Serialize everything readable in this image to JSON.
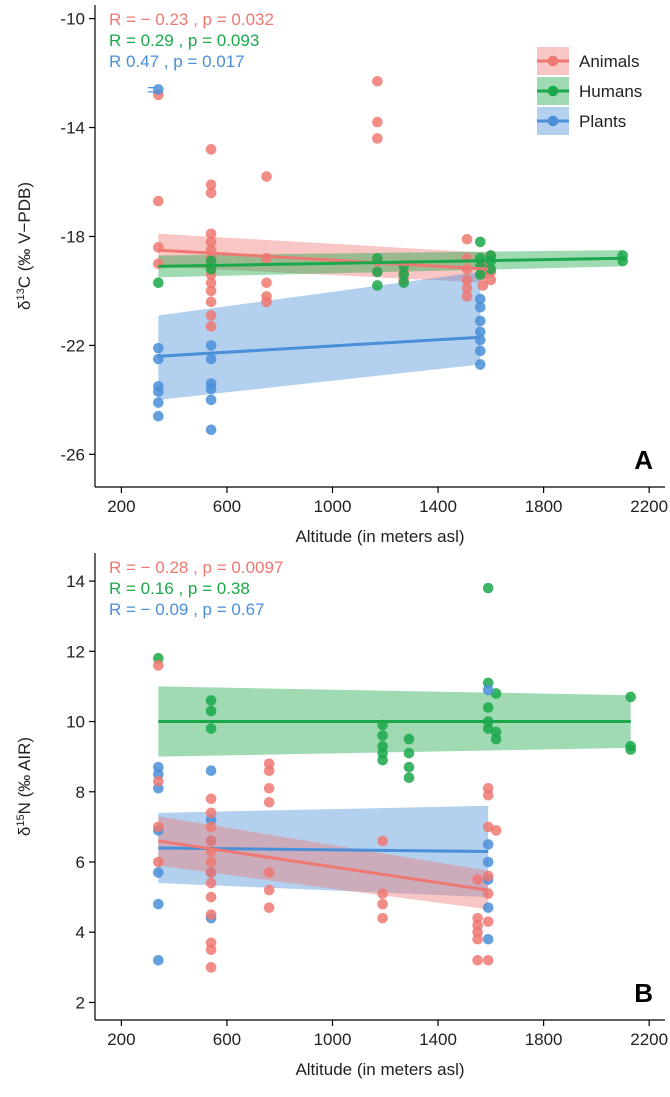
{
  "chart_data": [
    {
      "type": "scatter",
      "panel_label": "A",
      "xlabel": "Altitude (in meters asl)",
      "ylabel_prefix": "δ",
      "ylabel_sup": "13",
      "ylabel_suffix": "C (‰ V−PDB)",
      "xlim": [
        100,
        2260
      ],
      "ylim": [
        -27.2,
        -9.5
      ],
      "xticks": [
        200,
        600,
        1000,
        1400,
        1800,
        2200
      ],
      "yticks": [
        -26,
        -22,
        -18,
        -14,
        -10
      ],
      "ytick_labels": [
        "-26",
        "-22",
        "-18",
        "-14",
        "-10"
      ],
      "legend": {
        "placement": "top-right",
        "entries": [
          {
            "name": "Animals",
            "color": "#ee7872"
          },
          {
            "name": "Humans",
            "color": "#1aa84a"
          },
          {
            "name": "Plants",
            "color": "#4a8fd8"
          }
        ]
      },
      "stats": [
        {
          "text": "R = − 0.23 , p = 0.032",
          "color": "#ee7872"
        },
        {
          "text": "R = 0.29 , p = 0.093",
          "color": "#1aa84a"
        },
        {
          "text": "R    0.47 , p = 0.017",
          "color": "#4a8fd8"
        }
      ],
      "stray_label": {
        "text": "=",
        "x": 297,
        "y": -12.6,
        "color": "#4a8fd8"
      },
      "series": [
        {
          "name": "Animals",
          "color": "#ee7872",
          "fit": {
            "x": [
              340,
              1590
            ],
            "y": [
              -18.5,
              -19.2
            ]
          },
          "band_lower": [
            -19.1,
            -19.7
          ],
          "band_upper": [
            -17.9,
            -18.6
          ],
          "points": [
            [
              340,
              -12.8
            ],
            [
              340,
              -16.7
            ],
            [
              340,
              -18.4
            ],
            [
              340,
              -19.0
            ],
            [
              540,
              -14.8
            ],
            [
              540,
              -16.1
            ],
            [
              540,
              -16.4
            ],
            [
              540,
              -17.9
            ],
            [
              540,
              -18.2
            ],
            [
              540,
              -18.5
            ],
            [
              540,
              -18.8
            ],
            [
              540,
              -19.1
            ],
            [
              540,
              -19.4
            ],
            [
              540,
              -19.7
            ],
            [
              540,
              -20.0
            ],
            [
              540,
              -20.4
            ],
            [
              540,
              -20.9
            ],
            [
              540,
              -21.3
            ],
            [
              750,
              -15.8
            ],
            [
              750,
              -18.8
            ],
            [
              750,
              -19.7
            ],
            [
              750,
              -20.2
            ],
            [
              750,
              -20.4
            ],
            [
              1170,
              -12.3
            ],
            [
              1170,
              -13.8
            ],
            [
              1170,
              -14.4
            ],
            [
              1170,
              -18.9
            ],
            [
              1170,
              -19.3
            ],
            [
              1270,
              -19.3
            ],
            [
              1270,
              -19.6
            ],
            [
              1510,
              -18.1
            ],
            [
              1510,
              -18.8
            ],
            [
              1510,
              -19.2
            ],
            [
              1510,
              -19.6
            ],
            [
              1510,
              -19.9
            ],
            [
              1510,
              -20.2
            ],
            [
              1570,
              -19.0
            ],
            [
              1570,
              -19.4
            ],
            [
              1570,
              -19.8
            ],
            [
              1600,
              -18.7
            ],
            [
              1600,
              -19.3
            ],
            [
              1600,
              -19.6
            ]
          ]
        },
        {
          "name": "Humans",
          "color": "#1aa84a",
          "fit": {
            "x": [
              340,
              2100
            ],
            "y": [
              -19.1,
              -18.8
            ]
          },
          "band_lower": [
            -19.5,
            -19.1
          ],
          "band_upper": [
            -18.7,
            -18.5
          ],
          "points": [
            [
              340,
              -19.7
            ],
            [
              540,
              -18.9
            ],
            [
              540,
              -19.2
            ],
            [
              1170,
              -18.8
            ],
            [
              1170,
              -19.3
            ],
            [
              1170,
              -19.8
            ],
            [
              1270,
              -19.1
            ],
            [
              1270,
              -19.4
            ],
            [
              1270,
              -19.7
            ],
            [
              1560,
              -18.2
            ],
            [
              1560,
              -18.8
            ],
            [
              1560,
              -19.1
            ],
            [
              1560,
              -19.4
            ],
            [
              1600,
              -18.7
            ],
            [
              1600,
              -18.9
            ],
            [
              1600,
              -19.2
            ],
            [
              2100,
              -18.7
            ],
            [
              2100,
              -18.9
            ]
          ]
        },
        {
          "name": "Plants",
          "color": "#4a8fd8",
          "fit": {
            "x": [
              340,
              1560
            ],
            "y": [
              -22.4,
              -21.7
            ]
          },
          "band_lower": [
            -24.0,
            -22.7
          ],
          "band_upper": [
            -20.9,
            -19.3
          ],
          "points": [
            [
              340,
              -12.6
            ],
            [
              340,
              -22.1
            ],
            [
              340,
              -22.5
            ],
            [
              340,
              -23.5
            ],
            [
              340,
              -23.7
            ],
            [
              340,
              -24.1
            ],
            [
              340,
              -24.6
            ],
            [
              540,
              -22.0
            ],
            [
              540,
              -22.5
            ],
            [
              540,
              -23.4
            ],
            [
              540,
              -23.6
            ],
            [
              540,
              -24.0
            ],
            [
              540,
              -25.1
            ],
            [
              1560,
              -20.3
            ],
            [
              1560,
              -20.6
            ],
            [
              1560,
              -21.1
            ],
            [
              1560,
              -21.5
            ],
            [
              1560,
              -21.8
            ],
            [
              1560,
              -22.2
            ],
            [
              1560,
              -22.7
            ]
          ]
        }
      ]
    },
    {
      "type": "scatter",
      "panel_label": "B",
      "xlabel": "Altitude (in meters asl)",
      "ylabel_prefix": "δ",
      "ylabel_sup": "15",
      "ylabel_suffix": "N (‰ AIR)",
      "xlim": [
        100,
        2260
      ],
      "ylim": [
        1.5,
        14.8
      ],
      "xticks": [
        200,
        600,
        1000,
        1400,
        1800,
        2200
      ],
      "yticks": [
        2,
        4,
        6,
        8,
        10,
        12,
        14
      ],
      "ytick_labels": [
        "2",
        "4",
        "6",
        "8",
        "10",
        "12",
        "14"
      ],
      "stats": [
        {
          "text": "R = − 0.28 , p = 0.0097",
          "color": "#ee7872"
        },
        {
          "text": "R = 0.16 , p = 0.38",
          "color": "#1aa84a"
        },
        {
          "text": "R = − 0.09 , p = 0.67",
          "color": "#4a8fd8"
        }
      ],
      "series": [
        {
          "name": "Humans",
          "color": "#1aa84a",
          "fit": {
            "x": [
              340,
              2130
            ],
            "y": [
              10.0,
              10.0
            ]
          },
          "band_lower": [
            9.0,
            9.25
          ],
          "band_upper": [
            11.0,
            10.75
          ],
          "points": [
            [
              340,
              11.8
            ],
            [
              540,
              10.6
            ],
            [
              540,
              10.3
            ],
            [
              540,
              9.8
            ],
            [
              1190,
              9.9
            ],
            [
              1190,
              9.6
            ],
            [
              1190,
              9.3
            ],
            [
              1190,
              9.1
            ],
            [
              1190,
              8.9
            ],
            [
              1290,
              9.5
            ],
            [
              1290,
              9.1
            ],
            [
              1290,
              8.7
            ],
            [
              1290,
              8.4
            ],
            [
              1590,
              13.8
            ],
            [
              1590,
              11.1
            ],
            [
              1590,
              10.4
            ],
            [
              1590,
              10.0
            ],
            [
              1590,
              9.8
            ],
            [
              1620,
              10.8
            ],
            [
              1620,
              9.7
            ],
            [
              1620,
              9.5
            ],
            [
              2130,
              10.7
            ],
            [
              2130,
              9.3
            ],
            [
              2130,
              9.2
            ]
          ]
        },
        {
          "name": "Plants",
          "color": "#4a8fd8",
          "fit": {
            "x": [
              340,
              1590
            ],
            "y": [
              6.4,
              6.3
            ]
          },
          "band_lower": [
            5.4,
            5.0
          ],
          "band_upper": [
            7.4,
            7.6
          ],
          "points": [
            [
              340,
              8.7
            ],
            [
              340,
              8.5
            ],
            [
              340,
              8.1
            ],
            [
              340,
              6.9
            ],
            [
              340,
              5.7
            ],
            [
              340,
              4.8
            ],
            [
              340,
              3.2
            ],
            [
              540,
              8.6
            ],
            [
              540,
              7.2
            ],
            [
              540,
              6.6
            ],
            [
              540,
              5.7
            ],
            [
              540,
              4.4
            ],
            [
              1590,
              10.9
            ],
            [
              1590,
              6.5
            ],
            [
              1590,
              6.0
            ],
            [
              1590,
              5.5
            ],
            [
              1590,
              4.7
            ],
            [
              1590,
              3.8
            ]
          ]
        },
        {
          "name": "Animals",
          "color": "#ee7872",
          "fit": {
            "x": [
              340,
              1590
            ],
            "y": [
              6.6,
              5.2
            ]
          },
          "band_lower": [
            5.9,
            4.65
          ],
          "band_upper": [
            7.3,
            5.75
          ],
          "points": [
            [
              340,
              11.6
            ],
            [
              340,
              8.3
            ],
            [
              340,
              7.0
            ],
            [
              340,
              6.0
            ],
            [
              540,
              7.8
            ],
            [
              540,
              7.4
            ],
            [
              540,
              7.0
            ],
            [
              540,
              6.6
            ],
            [
              540,
              6.3
            ],
            [
              540,
              6.0
            ],
            [
              540,
              5.7
            ],
            [
              540,
              5.4
            ],
            [
              540,
              5.0
            ],
            [
              540,
              4.5
            ],
            [
              540,
              3.7
            ],
            [
              540,
              3.5
            ],
            [
              540,
              3.0
            ],
            [
              760,
              8.8
            ],
            [
              760,
              8.6
            ],
            [
              760,
              8.1
            ],
            [
              760,
              7.7
            ],
            [
              760,
              5.7
            ],
            [
              760,
              5.2
            ],
            [
              760,
              4.7
            ],
            [
              1190,
              6.6
            ],
            [
              1190,
              5.1
            ],
            [
              1190,
              4.8
            ],
            [
              1190,
              4.4
            ],
            [
              1550,
              5.5
            ],
            [
              1550,
              4.4
            ],
            [
              1550,
              4.2
            ],
            [
              1550,
              4.0
            ],
            [
              1550,
              3.8
            ],
            [
              1550,
              3.2
            ],
            [
              1590,
              8.1
            ],
            [
              1590,
              7.9
            ],
            [
              1590,
              7.0
            ],
            [
              1590,
              5.6
            ],
            [
              1590,
              5.1
            ],
            [
              1590,
              4.3
            ],
            [
              1590,
              3.2
            ],
            [
              1620,
              6.9
            ]
          ]
        }
      ]
    }
  ]
}
